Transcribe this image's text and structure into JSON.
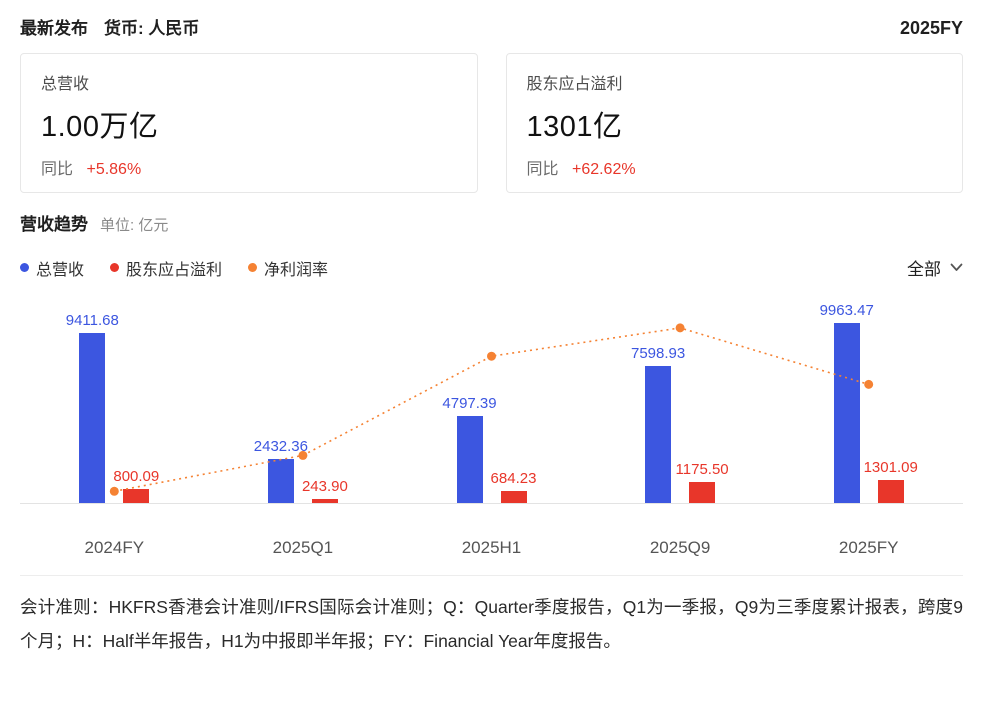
{
  "header": {
    "title": "最新发布",
    "currency_label": "货币: 人民币",
    "period": "2025FY"
  },
  "cards": [
    {
      "title": "总营收",
      "value": "1.00万亿",
      "yoy_label": "同比",
      "yoy_value": "+5.86%"
    },
    {
      "title": "股东应占溢利",
      "value": "1301亿",
      "yoy_label": "同比",
      "yoy_value": "+62.62%"
    }
  ],
  "section": {
    "title": "营收趋势",
    "unit": "单位: 亿元"
  },
  "legend": [
    {
      "label": "总营收",
      "color": "#3c56e0"
    },
    {
      "label": "股东应占溢利",
      "color": "#e8362a"
    },
    {
      "label": "净利润率",
      "color": "#f58233"
    }
  ],
  "filter": {
    "label": "全部",
    "icon": "chevron-down"
  },
  "chart_data": {
    "type": "bar",
    "title": "营收趋势",
    "unit": "亿元",
    "categories": [
      "2024FY",
      "2025Q1",
      "2025H1",
      "2025Q9",
      "2025FY"
    ],
    "series": [
      {
        "name": "总营收",
        "type": "bar",
        "color": "#3c56e0",
        "values": [
          9411.68,
          2432.36,
          4797.39,
          7598.93,
          9963.47
        ]
      },
      {
        "name": "股东应占溢利",
        "type": "bar",
        "color": "#e8362a",
        "values": [
          800.09,
          243.9,
          684.23,
          1175.5,
          1301.09
        ]
      },
      {
        "name": "净利润率",
        "type": "line",
        "style": "dotted",
        "color": "#f58233",
        "axis": "secondary",
        "values_percent_estimated": [
          8.5,
          10.03,
          14.26,
          15.47,
          13.06
        ]
      }
    ],
    "bar_axis_max": 11700,
    "line_axis": {
      "min": 8,
      "max": 17
    },
    "grid": false,
    "legend_position": "top-left",
    "value_labels_shown": true
  },
  "footnote": "会计准则：HKFRS香港会计准则/IFRS国际会计准则；Q：Quarter季度报告，Q1为一季报，Q9为三季度累计报表，跨度9个月；H：Half半年报告，H1为中报即半年报；FY：Financial Year年度报告。"
}
